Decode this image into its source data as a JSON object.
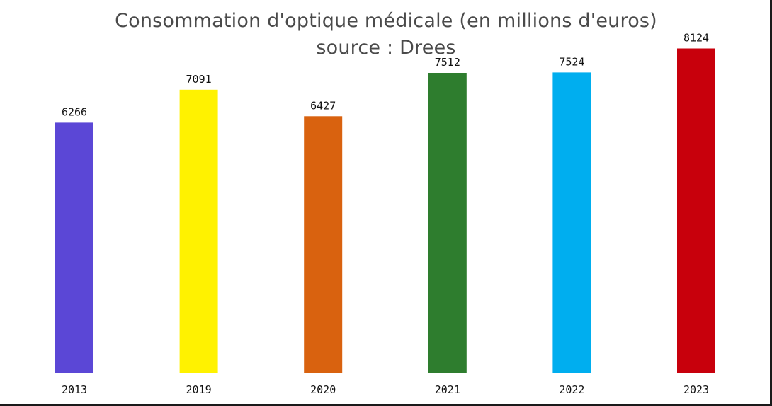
{
  "chart_data": {
    "type": "bar",
    "title": "Consommation d'optique médicale (en millions d'euros)",
    "subtitle": "source : Drees",
    "categories": [
      "2013",
      "2019",
      "2020",
      "2021",
      "2022",
      "2023"
    ],
    "values": [
      6266,
      7091,
      6427,
      7512,
      7524,
      8124
    ],
    "colors": [
      "#5b47d6",
      "#fff200",
      "#d9620f",
      "#2e7d2e",
      "#00aeef",
      "#c8000c"
    ],
    "data_labels": [
      "6266",
      "7091",
      "6427",
      "7512",
      "7524",
      "8124"
    ],
    "xlabel": "",
    "ylabel": "",
    "ylim": [
      0,
      8700
    ],
    "grid": false,
    "legend": "none"
  }
}
